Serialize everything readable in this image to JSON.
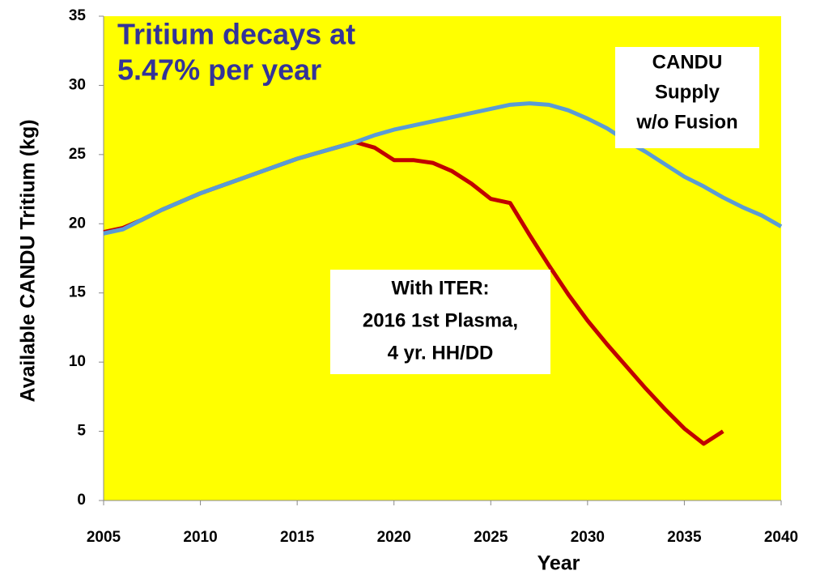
{
  "chart_data": {
    "type": "line",
    "x_label": "Year",
    "y_label": "Available CANDU Tritium (kg)",
    "background": "#ffff00",
    "x": [
      2005,
      2006,
      2007,
      2008,
      2009,
      2010,
      2011,
      2012,
      2013,
      2014,
      2015,
      2016,
      2017,
      2018,
      2019,
      2020,
      2021,
      2022,
      2023,
      2024,
      2025,
      2026,
      2027,
      2028,
      2029,
      2030,
      2031,
      2032,
      2033,
      2034,
      2035,
      2036,
      2037,
      2038,
      2039,
      2040
    ],
    "series": [
      {
        "color": "#c00000",
        "values": [
          19.4,
          19.7,
          20.3,
          21.0,
          21.6,
          22.2,
          22.7,
          23.2,
          23.7,
          24.2,
          24.7,
          25.1,
          25.5,
          25.9,
          25.5,
          24.6,
          24.6,
          24.4,
          23.8,
          22.9,
          21.8,
          21.5,
          19.2,
          17.0,
          14.9,
          13.0,
          11.3,
          9.7,
          8.1,
          6.6,
          5.2,
          4.1,
          5.0,
          null,
          null,
          null
        ]
      },
      {
        "color": "#5a9bd5",
        "values": [
          19.3,
          19.6,
          20.3,
          21.0,
          21.6,
          22.2,
          22.7,
          23.2,
          23.7,
          24.2,
          24.7,
          25.1,
          25.5,
          25.9,
          26.4,
          26.8,
          27.1,
          27.4,
          27.7,
          28.0,
          28.3,
          28.6,
          28.7,
          28.6,
          28.2,
          27.6,
          26.9,
          26.0,
          25.2,
          24.3,
          23.4,
          22.7,
          21.9,
          21.2,
          20.6,
          19.8
        ]
      }
    ],
    "xlim": [
      2005,
      2040
    ],
    "xticks": [
      2005,
      2010,
      2015,
      2020,
      2025,
      2030,
      2035,
      2040
    ],
    "ylim": [
      0,
      35
    ],
    "yticks": [
      0,
      5,
      10,
      15,
      20,
      25,
      30,
      35
    ],
    "annotations": [
      {
        "lines": [
          "Tritium decays at",
          "5.47% per year"
        ],
        "color": "#333399"
      },
      {
        "lines": [
          "CANDU",
          "Supply",
          "w/o Fusion"
        ],
        "color": "#000000"
      },
      {
        "lines": [
          "With ITER:",
          "2016 1st Plasma,",
          "4 yr. HH/DD"
        ],
        "color": "#000000"
      }
    ]
  }
}
